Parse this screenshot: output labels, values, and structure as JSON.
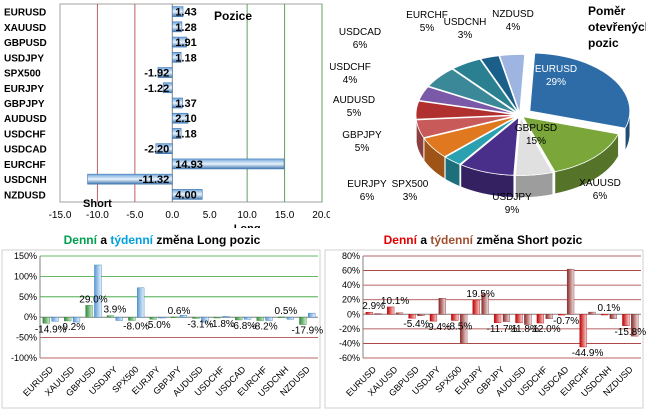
{
  "colors": {
    "positive": "#2e75b6",
    "negative": "#c00000",
    "green": "#00a050",
    "cyan": "#00a0e0",
    "red": "#e00000",
    "brown": "#a05030"
  },
  "chart_data": [
    {
      "type": "bar",
      "orientation": "horizontal",
      "title": "Pozice",
      "categories": [
        "EURUSD",
        "XAUUSD",
        "GBPUSD",
        "USDJPY",
        "SPX500",
        "EURJPY",
        "GBPJPY",
        "AUDUSD",
        "USDCHF",
        "USDCAD",
        "EURCHF",
        "USDCNH",
        "NZDUSD"
      ],
      "values": [
        1.43,
        1.28,
        1.91,
        1.18,
        -1.92,
        -1.22,
        1.37,
        2.1,
        1.18,
        -2.2,
        14.93,
        -11.32,
        4.0
      ],
      "value_labels": [
        "1.43",
        "1.28",
        "1.91",
        "1.18",
        "-1.92",
        "-1.22",
        "1.37",
        "2.10",
        "1.18",
        "-2.20",
        "14.93",
        "-11.32",
        "4.00"
      ],
      "xlim": [
        -15,
        20
      ],
      "xticks": [
        "-15.0",
        "-10.0",
        "-5.0",
        "0.0",
        "5.0",
        "10.0",
        "15.0",
        "20.0"
      ],
      "annotations": {
        "short": "Short",
        "long": "Long"
      }
    },
    {
      "type": "pie",
      "title": "Poměr otevřených pozic",
      "labels": [
        "EURUSD",
        "GBPUSD",
        "XAUUSD",
        "USDJPY",
        "SPX500",
        "EURJPY",
        "GBPJPY",
        "AUDUSD",
        "USDCHF",
        "USDCAD",
        "EURCHF",
        "USDCNH",
        "NZDUSD"
      ],
      "values": [
        29,
        15,
        6,
        9,
        3,
        6,
        5,
        5,
        4,
        6,
        5,
        3,
        4
      ],
      "value_labels": [
        "29%",
        "15%",
        "6%",
        "9%",
        "3%",
        "6%",
        "5%",
        "5%",
        "4%",
        "6%",
        "5%",
        "3%",
        "4%"
      ],
      "colors": [
        "#2e6ca8",
        "#7aa63a",
        "#e0e0e0",
        "#4a2f8a",
        "#2aa0b0",
        "#e07820",
        "#c85a5a",
        "#b03030",
        "#7a5aa8",
        "#3a8898",
        "#2a8090",
        "#1a5f8a",
        "#9db5e0"
      ]
    },
    {
      "type": "bar",
      "title_parts": [
        "Denní",
        " a ",
        "týdenní",
        " změna Long pozic"
      ],
      "categories": [
        "EURUSD",
        "XAUUSD",
        "GBPUSD",
        "USDJPY",
        "SPX500",
        "EURJPY",
        "GBPJPY",
        "AUDUSD",
        "USDCHF",
        "USDCAD",
        "EURCHF",
        "USDCNH",
        "NZDUSD"
      ],
      "series": [
        {
          "values": [
            -14.9,
            -9.2,
            29.0,
            3.9,
            -8.0,
            -5.0,
            0.6,
            -3.1,
            -1.8,
            -6.8,
            -8.2,
            0.5,
            -17.9
          ]
        },
        {
          "values": [
            -10,
            -12,
            128,
            -8,
            72,
            -2,
            5,
            -12,
            2,
            -5,
            -8,
            -5,
            10
          ]
        }
      ],
      "value_labels": [
        "-14.9%",
        "-9.2%",
        "29.0%",
        "3.9%",
        "-8.0%",
        "-5.0%",
        "0.6%",
        "-3.1%",
        "-1.8%",
        "-6.8%",
        "-8.2%",
        "0.5%",
        "-17.9%"
      ],
      "ylim": [
        -100,
        150
      ],
      "yticks": [
        "150%",
        "100%",
        "50%",
        "0%",
        "-50%",
        "-100%"
      ]
    },
    {
      "type": "bar",
      "title_parts": [
        "Denní",
        " a ",
        "týdenní",
        " změna Short pozic"
      ],
      "categories": [
        "EURUSD",
        "XAUUSD",
        "GBPUSD",
        "USDJPY",
        "SPX500",
        "EURJPY",
        "GBPJPY",
        "AUDUSD",
        "USDCHF",
        "USDCAD",
        "EURCHF",
        "USDCNH",
        "NZDUSD"
      ],
      "series": [
        {
          "values": [
            2.9,
            10.1,
            -5.4,
            -9.4,
            -8.5,
            19.5,
            -11.7,
            -11.8,
            -12.0,
            -0.7,
            -44.9,
            0.1,
            -15.8
          ]
        },
        {
          "values": [
            1,
            2,
            -2,
            22,
            -40,
            28,
            -10,
            -14,
            -6,
            62,
            3,
            -6,
            -30
          ]
        }
      ],
      "value_labels": [
        "2.9%",
        "10.1%",
        "-5.4%",
        "-9.4%",
        "-8.5%",
        "19.5%",
        "-11.7%",
        "-11.8%",
        "-12.0%",
        "-0.7%",
        "-44.9%",
        "0.1%",
        "-15.8%"
      ],
      "ylim": [
        -60,
        80
      ],
      "yticks": [
        "80%",
        "60%",
        "40%",
        "20%",
        "0%",
        "-20%",
        "-40%",
        "-60%"
      ]
    }
  ]
}
